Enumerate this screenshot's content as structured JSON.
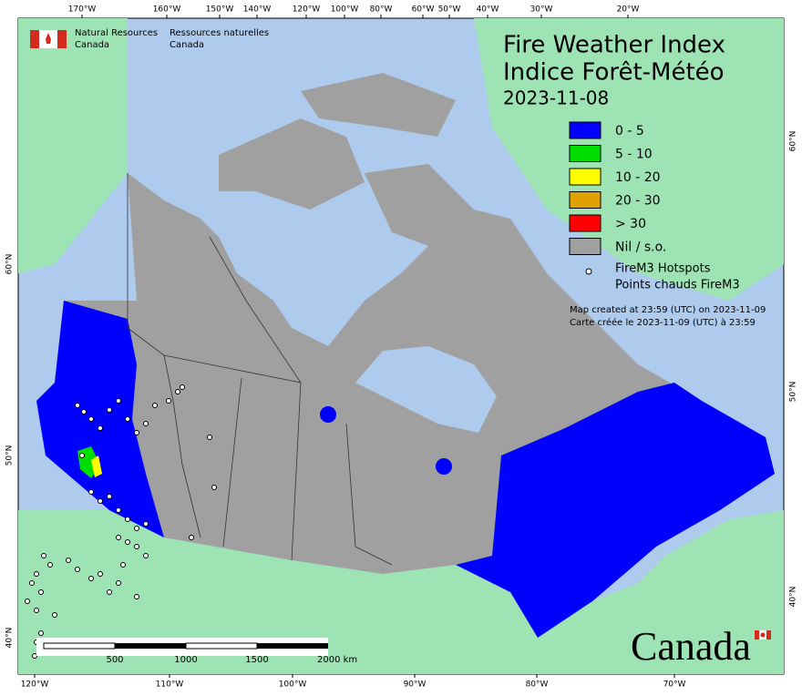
{
  "header": {
    "agency_en": [
      "Natural Resources",
      "Canada"
    ],
    "agency_fr": [
      "Ressources naturelles",
      "Canada"
    ]
  },
  "title": {
    "line1": "Fire Weather Index",
    "line2": "Indice Forêt-Météo",
    "date": "2023-11-08"
  },
  "legend": {
    "items": [
      {
        "label": "0 - 5",
        "color": "#0000ff"
      },
      {
        "label": "5 - 10",
        "color": "#00dd00"
      },
      {
        "label": "10 - 20",
        "color": "#ffff00"
      },
      {
        "label": "20 - 30",
        "color": "#e0a000"
      },
      {
        "label": "> 30",
        "color": "#ff0000"
      },
      {
        "label": "Nil / s.o.",
        "color": "#a0a0a0"
      }
    ],
    "hotspots": [
      "FireM3 Hotspots",
      "Points chauds FireM3"
    ]
  },
  "notes": [
    "Map created at 23:59 (UTC) on 2023-11-09",
    "Carte créée le 2023-11-09 (UTC) à 23:59"
  ],
  "graticule": {
    "top": [
      "170°W",
      "160°W",
      "150°W",
      "140°W",
      "120°W",
      "100°W",
      "80°W",
      "60°W",
      "50°W",
      "40°W",
      "30°W",
      "20°W"
    ],
    "bottom": [
      "120°W",
      "110°W",
      "100°W",
      "90°W",
      "80°W",
      "70°W"
    ],
    "left": [
      "60°N",
      "50°N",
      "40°N"
    ],
    "right": [
      "60°N",
      "50°N",
      "40°N"
    ]
  },
  "scale": {
    "labels": [
      "500",
      "1000",
      "1500",
      "2000  km"
    ]
  },
  "wordmark": "Canada"
}
